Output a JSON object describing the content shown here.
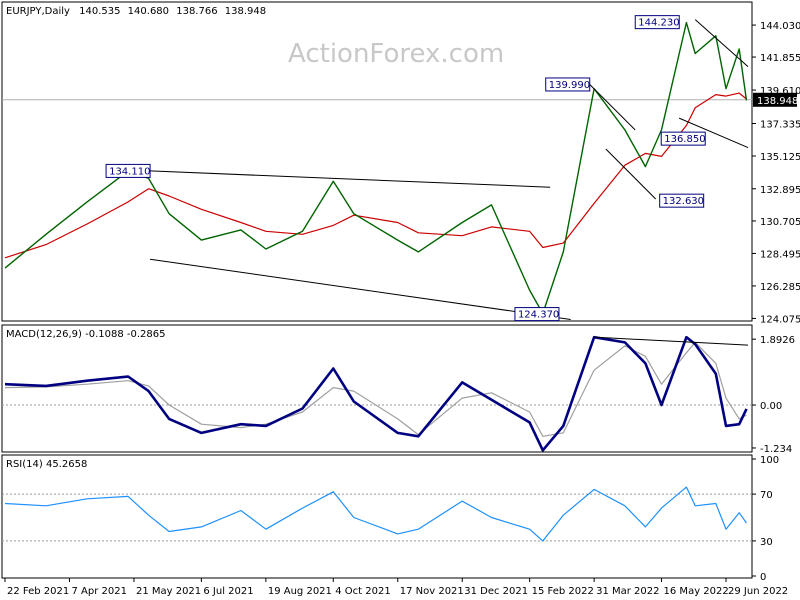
{
  "chart_data": [
    {
      "type": "line",
      "symbol": "EURJPY",
      "timeframe": "Daily",
      "title": "EURJPY,Daily",
      "ohlc": {
        "open": "140.535",
        "high": "140.680",
        "low": "138.766",
        "close": "138.948"
      },
      "last_price_label": "138.948",
      "watermark": "ActionForex.com",
      "y_ticks": [
        "144.030",
        "141.855",
        "139.610",
        "137.335",
        "135.125",
        "132.895",
        "130.705",
        "128.495",
        "126.285",
        "124.075"
      ],
      "ylim": [
        123.9,
        145.6
      ],
      "x": [
        "2021-02-22",
        "2021-03-22",
        "2021-04-19",
        "2021-05-17",
        "2021-05-31",
        "2021-06-14",
        "2021-07-06",
        "2021-08-02",
        "2021-08-19",
        "2021-09-13",
        "2021-10-04",
        "2021-10-18",
        "2021-11-17",
        "2021-12-01",
        "2021-12-31",
        "2022-01-20",
        "2022-02-15",
        "2022-02-24",
        "2022-03-10",
        "2022-03-31",
        "2022-04-21",
        "2022-05-05",
        "2022-05-16",
        "2022-06-02",
        "2022-06-08",
        "2022-06-22",
        "2022-06-29",
        "2022-07-08",
        "2022-07-13"
      ],
      "series": [
        {
          "name": "Close",
          "values": [
            127.5,
            129.8,
            132.0,
            134.1,
            133.6,
            131.2,
            129.4,
            130.1,
            128.8,
            130.0,
            133.4,
            131.2,
            129.4,
            128.6,
            130.6,
            131.8,
            126.0,
            124.4,
            128.6,
            139.7,
            136.9,
            134.4,
            136.9,
            144.2,
            142.1,
            143.3,
            139.7,
            142.4,
            138.9
          ]
        },
        {
          "name": "SMA",
          "values": [
            128.2,
            129.1,
            130.5,
            132.0,
            132.9,
            132.4,
            131.5,
            130.6,
            130.0,
            129.8,
            130.4,
            131.1,
            130.6,
            129.9,
            129.7,
            130.3,
            130.0,
            128.9,
            129.2,
            131.9,
            134.5,
            135.3,
            135.1,
            137.2,
            138.4,
            139.3,
            139.2,
            139.4,
            139.0
          ]
        }
      ],
      "annotations": [
        {
          "label": "144.230",
          "date": "2022-06-08",
          "price": 144.23
        },
        {
          "label": "139.990",
          "date": "2022-03-28",
          "price": 139.99
        },
        {
          "label": "136.850",
          "date": "2022-06-23",
          "price": 136.85
        },
        {
          "label": "134.110",
          "date": "2021-06-01",
          "price": 134.11
        },
        {
          "label": "132.630",
          "date": "2022-05-12",
          "price": 132.63
        },
        {
          "label": "124.370",
          "date": "2022-03-07",
          "price": 124.37
        }
      ],
      "trendlines": [
        {
          "from": {
            "date": "2021-06-01",
            "price": 134.11
          },
          "to": {
            "date": "2022-03-01",
            "price": 133.0
          }
        },
        {
          "from": {
            "date": "2021-06-01",
            "price": 128.1
          },
          "to": {
            "date": "2022-03-15",
            "price": 124.0
          }
        },
        {
          "from": {
            "date": "2022-03-28",
            "price": 139.99
          },
          "to": {
            "date": "2022-04-28",
            "price": 136.9
          }
        },
        {
          "from": {
            "date": "2022-04-08",
            "price": 135.6
          },
          "to": {
            "date": "2022-05-12",
            "price": 132.2
          }
        },
        {
          "from": {
            "date": "2022-06-08",
            "price": 144.4
          },
          "to": {
            "date": "2022-07-14",
            "price": 141.2
          }
        },
        {
          "from": {
            "date": "2022-05-28",
            "price": 137.7
          },
          "to": {
            "date": "2022-07-14",
            "price": 135.7
          }
        }
      ],
      "grid": false
    },
    {
      "type": "line",
      "title": "MACD(12,26,9) -0.1088 -0.2865",
      "y_ticks": [
        "1.8926",
        "0.00",
        "-1.234"
      ],
      "ylim": [
        -1.35,
        2.3
      ],
      "x": [
        "2021-02-22",
        "2021-03-22",
        "2021-04-19",
        "2021-05-17",
        "2021-05-31",
        "2021-06-14",
        "2021-07-06",
        "2021-08-02",
        "2021-08-19",
        "2021-09-13",
        "2021-10-04",
        "2021-10-18",
        "2021-11-17",
        "2021-12-01",
        "2021-12-31",
        "2022-01-20",
        "2022-02-15",
        "2022-02-24",
        "2022-03-10",
        "2022-03-31",
        "2022-04-21",
        "2022-05-05",
        "2022-05-16",
        "2022-06-02",
        "2022-06-08",
        "2022-06-22",
        "2022-06-29",
        "2022-07-08",
        "2022-07-13"
      ],
      "series": [
        {
          "name": "MACD",
          "values": [
            0.6,
            0.55,
            0.7,
            0.82,
            0.4,
            -0.4,
            -0.8,
            -0.55,
            -0.6,
            -0.1,
            1.05,
            0.1,
            -0.8,
            -0.9,
            0.65,
            0.15,
            -0.5,
            -1.3,
            -0.6,
            1.95,
            1.8,
            1.2,
            0.0,
            1.95,
            1.75,
            0.9,
            -0.6,
            -0.55,
            -0.11
          ]
        },
        {
          "name": "Signal",
          "values": [
            0.5,
            0.52,
            0.6,
            0.7,
            0.55,
            0.0,
            -0.55,
            -0.65,
            -0.55,
            -0.2,
            0.5,
            0.4,
            -0.4,
            -0.85,
            0.2,
            0.35,
            -0.2,
            -0.9,
            -0.8,
            1.0,
            1.7,
            1.4,
            0.6,
            1.5,
            1.8,
            1.2,
            0.2,
            -0.4,
            -0.29
          ]
        }
      ],
      "grid": false
    },
    {
      "type": "line",
      "title": "RSI(14) 45.2658",
      "y_ticks": [
        "100",
        "70",
        "30",
        "0"
      ],
      "ylim": [
        0,
        100
      ],
      "x": [
        "2021-02-22",
        "2021-03-22",
        "2021-04-19",
        "2021-05-17",
        "2021-05-31",
        "2021-06-14",
        "2021-07-06",
        "2021-08-02",
        "2021-08-19",
        "2021-09-13",
        "2021-10-04",
        "2021-10-18",
        "2021-11-17",
        "2021-12-01",
        "2021-12-31",
        "2022-01-20",
        "2022-02-15",
        "2022-02-24",
        "2022-03-10",
        "2022-03-31",
        "2022-04-21",
        "2022-05-05",
        "2022-05-16",
        "2022-06-02",
        "2022-06-08",
        "2022-06-22",
        "2022-06-29",
        "2022-07-08",
        "2022-07-13"
      ],
      "series": [
        {
          "name": "RSI",
          "values": [
            62,
            60,
            66,
            68,
            52,
            38,
            42,
            56,
            40,
            58,
            72,
            50,
            36,
            40,
            64,
            50,
            40,
            30,
            52,
            74,
            60,
            42,
            58,
            76,
            60,
            62,
            40,
            54,
            45.3
          ]
        }
      ],
      "grid": false
    }
  ],
  "x_axis": {
    "date_ticks": [
      "2021-02-22",
      "2021-04-07",
      "2021-05-21",
      "2021-07-06",
      "2021-08-19",
      "2021-10-04",
      "2021-11-17",
      "2021-12-31",
      "2022-02-15",
      "2022-03-31",
      "2022-05-16",
      "2022-06-29"
    ],
    "tick_labels": [
      "22 Feb 2021",
      "7 Apr 2021",
      "21 May 2021",
      "6 Jul 2021",
      "19 Aug 2021",
      "4 Oct 2021",
      "17 Nov 2021",
      "31 Dec 2021",
      "15 Feb 2022",
      "31 Mar 2022",
      "16 May 2022",
      "29 Jun 2022"
    ]
  },
  "colors": {
    "price": "#006400",
    "sma": "#cc0000",
    "macd": "#000080",
    "signal": "#a0a0a0",
    "rsi": "#1e90ff",
    "annotation": "#000080",
    "trendline": "#000000",
    "last_price_bg": "#000000"
  }
}
